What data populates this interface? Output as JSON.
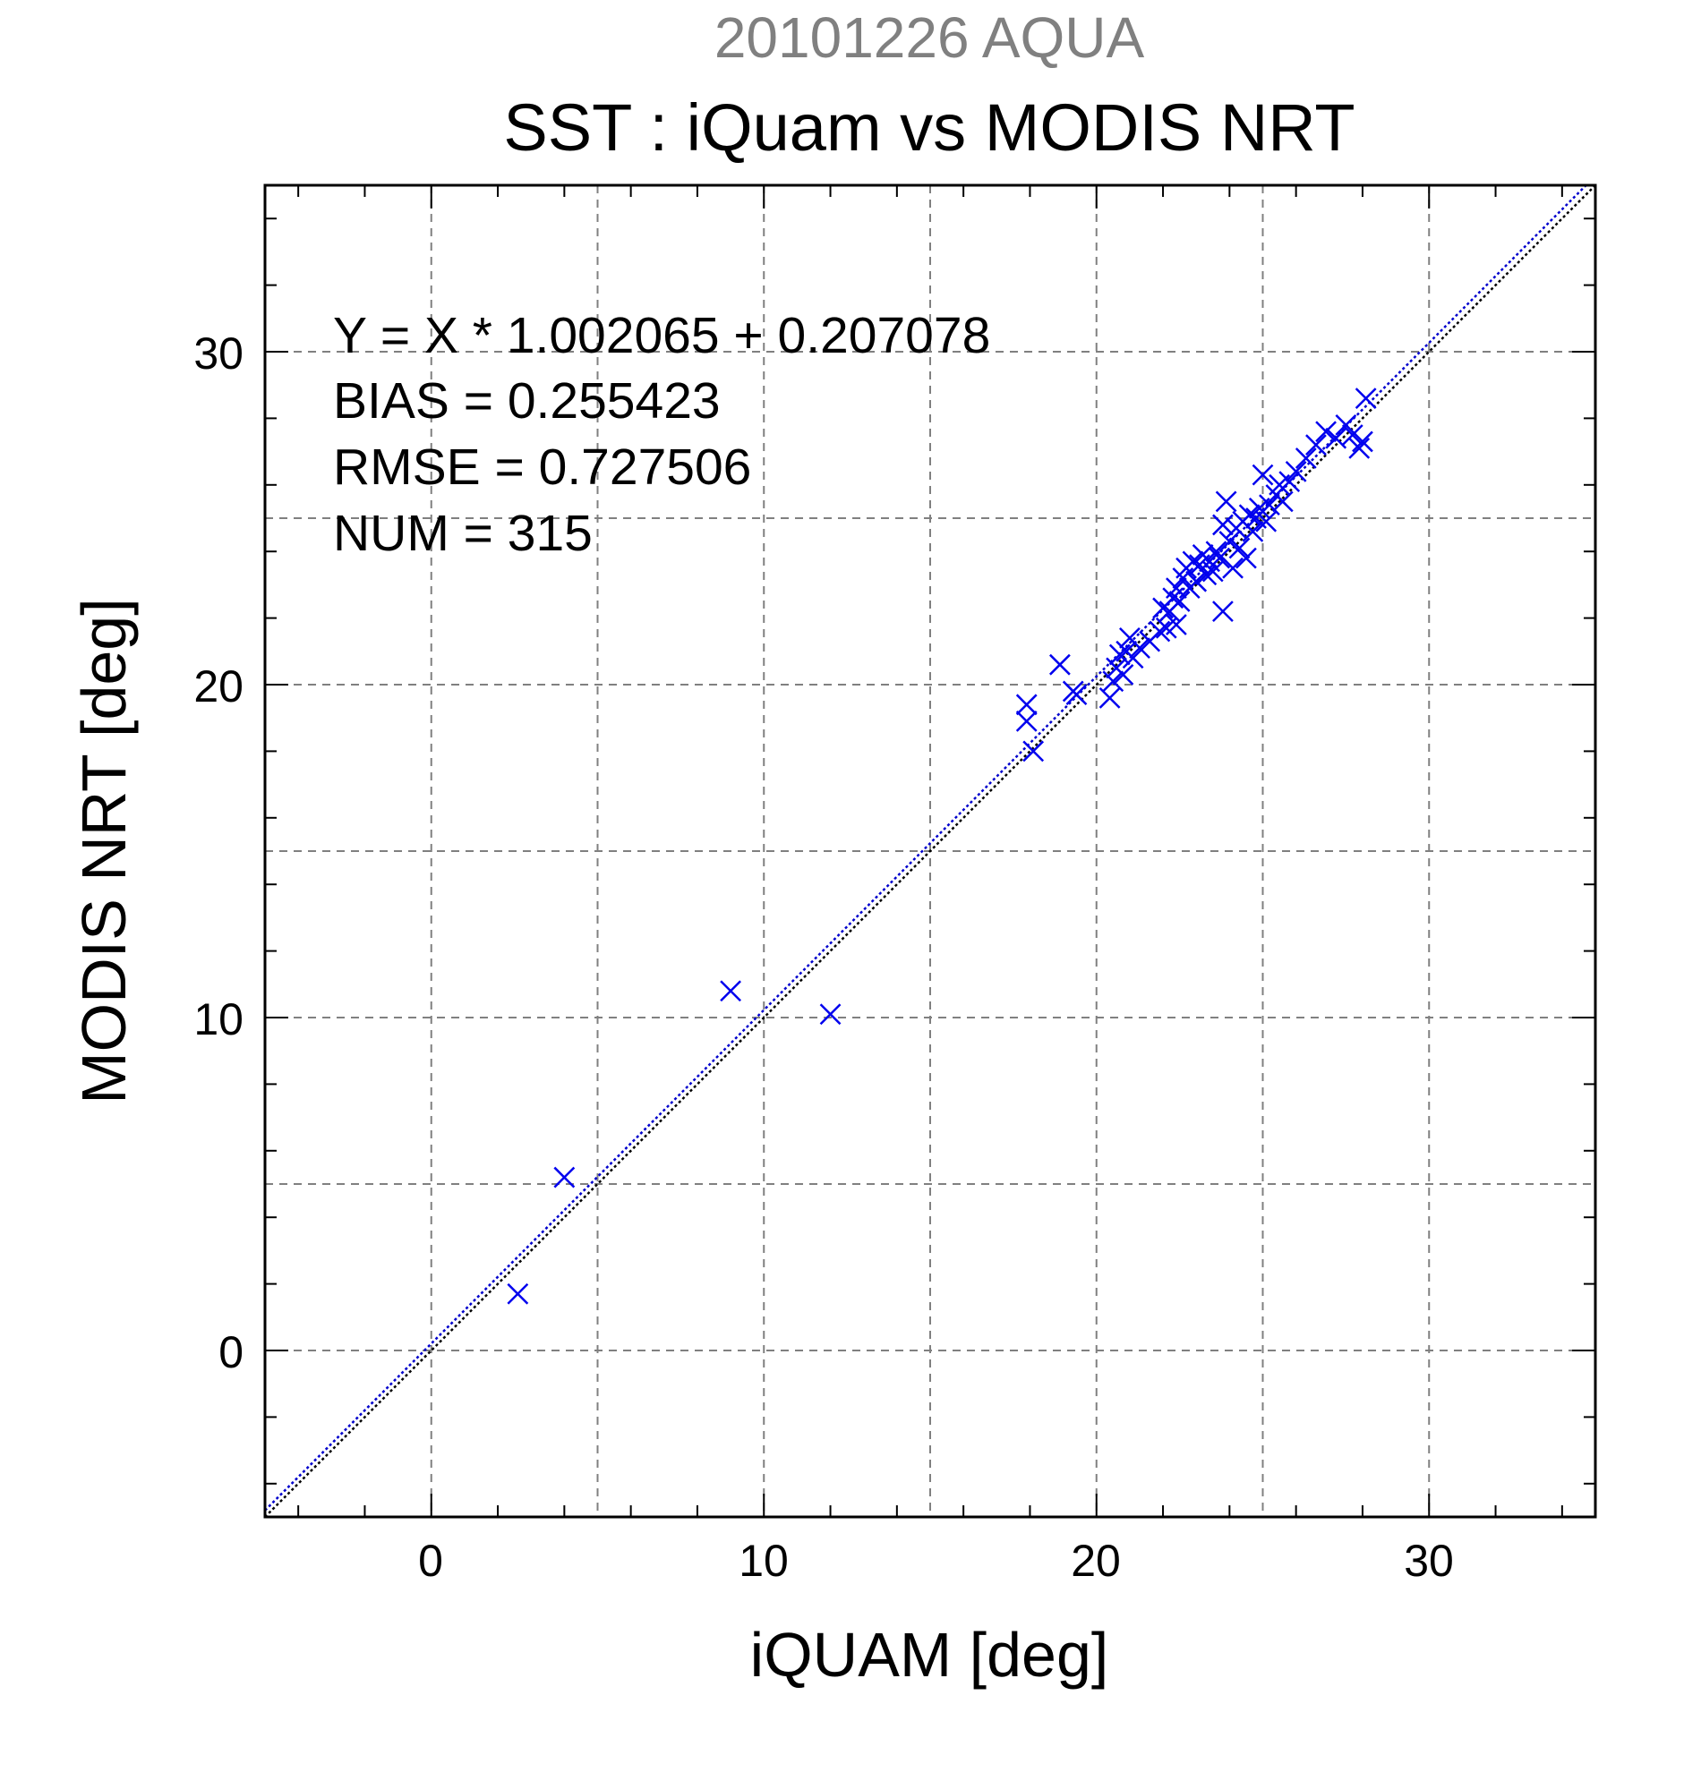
{
  "chart_data": {
    "type": "scatter",
    "title": "SST : iQuam vs MODIS NRT",
    "subtitle": "20101226 AQUA",
    "xlabel": "iQUAM [deg]",
    "ylabel": "MODIS NRT [deg]",
    "xlim": [
      -5,
      35
    ],
    "ylim": [
      -5,
      35
    ],
    "x_ticks": [
      0,
      10,
      20,
      30
    ],
    "y_ticks": [
      0,
      10,
      20,
      30
    ],
    "x_tick_labels": [
      "0",
      "10",
      "20",
      "30"
    ],
    "y_tick_labels": [
      "0",
      "10",
      "20",
      "30"
    ],
    "grid": true,
    "marker": "x",
    "colors": {
      "points": "#0000ee",
      "fit_line": "#0000cc",
      "one_to_one": "#000000",
      "subtitle": "#808080",
      "grid": "#808080"
    },
    "stats": [
      "Y = X * 1.002065 + 0.207078",
      "BIAS = 0.255423",
      "RMSE = 0.727506",
      "NUM = 315"
    ],
    "fit": {
      "slope": 1.002065,
      "intercept": 0.207078
    },
    "series": [
      {
        "x": [
          2.6,
          4.0,
          9.0,
          12.0,
          17.9,
          17.9,
          18.1,
          18.9,
          19.3,
          19.4,
          20.4,
          20.5,
          20.6,
          20.7,
          20.8,
          20.9,
          21.0,
          21.1,
          21.3,
          21.6,
          21.9,
          22.0,
          22.1,
          22.2,
          22.3,
          22.4,
          22.4,
          22.5,
          22.6,
          22.7,
          22.8,
          22.9,
          23.0,
          23.1,
          23.2,
          23.3,
          23.4,
          23.5,
          23.6,
          23.7,
          23.8,
          23.8,
          23.9,
          24.0,
          24.1,
          24.2,
          24.3,
          24.4,
          24.5,
          24.6,
          24.7,
          24.8,
          24.9,
          25.0,
          25.1,
          25.2,
          25.4,
          25.5,
          25.6,
          25.8,
          26.0,
          26.3,
          26.6,
          26.9,
          27.2,
          27.5,
          27.7,
          27.9,
          28.0,
          28.1
        ],
        "y": [
          1.7,
          5.2,
          10.8,
          10.1,
          19.4,
          18.9,
          18.0,
          20.6,
          19.8,
          19.7,
          19.6,
          20.1,
          20.5,
          20.9,
          20.3,
          21.0,
          21.4,
          20.8,
          21.1,
          21.3,
          21.6,
          22.3,
          21.7,
          22.2,
          22.6,
          21.8,
          22.9,
          22.5,
          23.2,
          23.5,
          22.9,
          23.7,
          23.1,
          23.6,
          23.9,
          23.3,
          23.7,
          23.4,
          24.0,
          23.8,
          22.2,
          24.8,
          25.5,
          24.3,
          23.5,
          24.7,
          24.1,
          24.9,
          23.8,
          25.1,
          24.6,
          25.0,
          25.3,
          26.3,
          24.9,
          25.4,
          25.7,
          26.0,
          25.5,
          26.1,
          26.4,
          26.8,
          27.2,
          27.6,
          27.4,
          27.8,
          27.5,
          27.1,
          27.3,
          28.6
        ]
      }
    ]
  }
}
